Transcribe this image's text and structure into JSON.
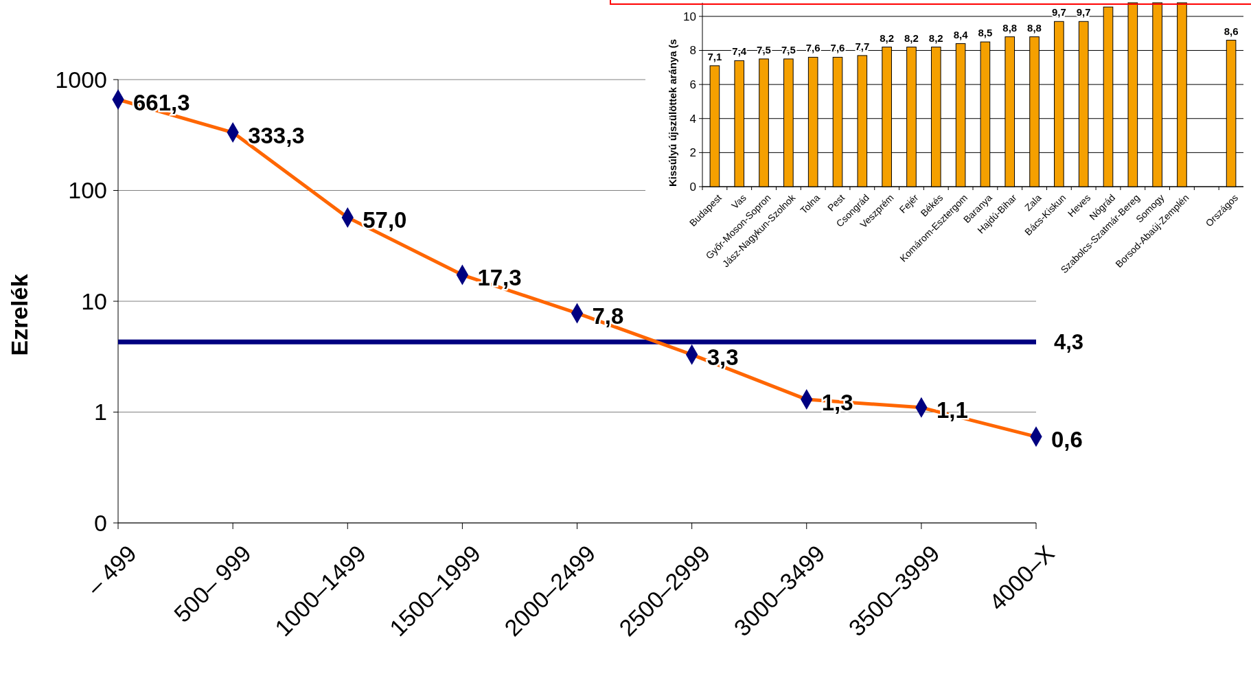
{
  "chart_data": [
    {
      "type": "line",
      "ylabel": "Ezrelék",
      "categories": [
        "– 499",
        "500– 999",
        "1000–1499",
        "1500–1999",
        "2000–2499",
        "2500–2999",
        "3000–3499",
        "3500–3999",
        "4000–X"
      ],
      "series": [
        {
          "color": "#ff6600",
          "values": [
            661.3,
            333.3,
            57.0,
            17.3,
            7.8,
            3.3,
            1.3,
            1.1,
            0.6
          ],
          "value_labels": [
            "661,3",
            "333,3",
            "57,0",
            "17,3",
            "7,8",
            "3,3",
            "1,3",
            "1,1",
            "0,6"
          ]
        }
      ],
      "log": "y",
      "ylim": [
        0.1,
        1000
      ],
      "yticks": [
        {
          "value": 0.1,
          "label": "0"
        },
        1,
        10,
        100,
        1000
      ],
      "grid": "y",
      "marker": "diamond",
      "line_style": "solid",
      "ref_lines": [
        {
          "axis": "y",
          "value": 4.3,
          "label": "4,3",
          "color": "#000080"
        }
      ]
    },
    {
      "type": "bar",
      "ylabel": "Kissúlyú újszülöttek aránya (s",
      "categories": [
        "Budapest",
        "Vas",
        "Győr-Moson-Sopron",
        "Jász-Nagykun-Szolnok",
        "Tolna",
        "Pest",
        "Csongrád",
        "Veszprém",
        "Fejér",
        "Békés",
        "Komárom-Esztergom",
        "Baranya",
        "Hajdú-Bihar",
        "Zala",
        "Bács-Kiskun",
        "Heves",
        "Nógrád",
        "Szabolcs-Szatmár-Bereg",
        "Somogy",
        "Borsod-Abaúj-Zemplén",
        null,
        "Országos"
      ],
      "values": [
        7.1,
        7.4,
        7.5,
        7.5,
        7.6,
        7.6,
        7.7,
        8.2,
        8.2,
        8.2,
        8.4,
        8.5,
        8.8,
        8.8,
        9.7,
        9.7,
        10.55,
        10.8,
        10.8,
        10.8,
        null,
        8.6
      ],
      "value_labels": [
        "7,1",
        "7,4",
        "7,5",
        "7,5",
        "7,6",
        "7,6",
        "7,7",
        "8,2",
        "8,2",
        "8,2",
        "8,4",
        "8,5",
        "8,8",
        "8,8",
        "9,7",
        "9,7",
        null,
        null,
        null,
        null,
        null,
        "8,6"
      ],
      "color": "#f5a000",
      "ylim": [
        0,
        10.8
      ],
      "yticks": [
        0,
        2,
        4,
        6,
        8,
        10
      ],
      "grid": "y"
    }
  ]
}
